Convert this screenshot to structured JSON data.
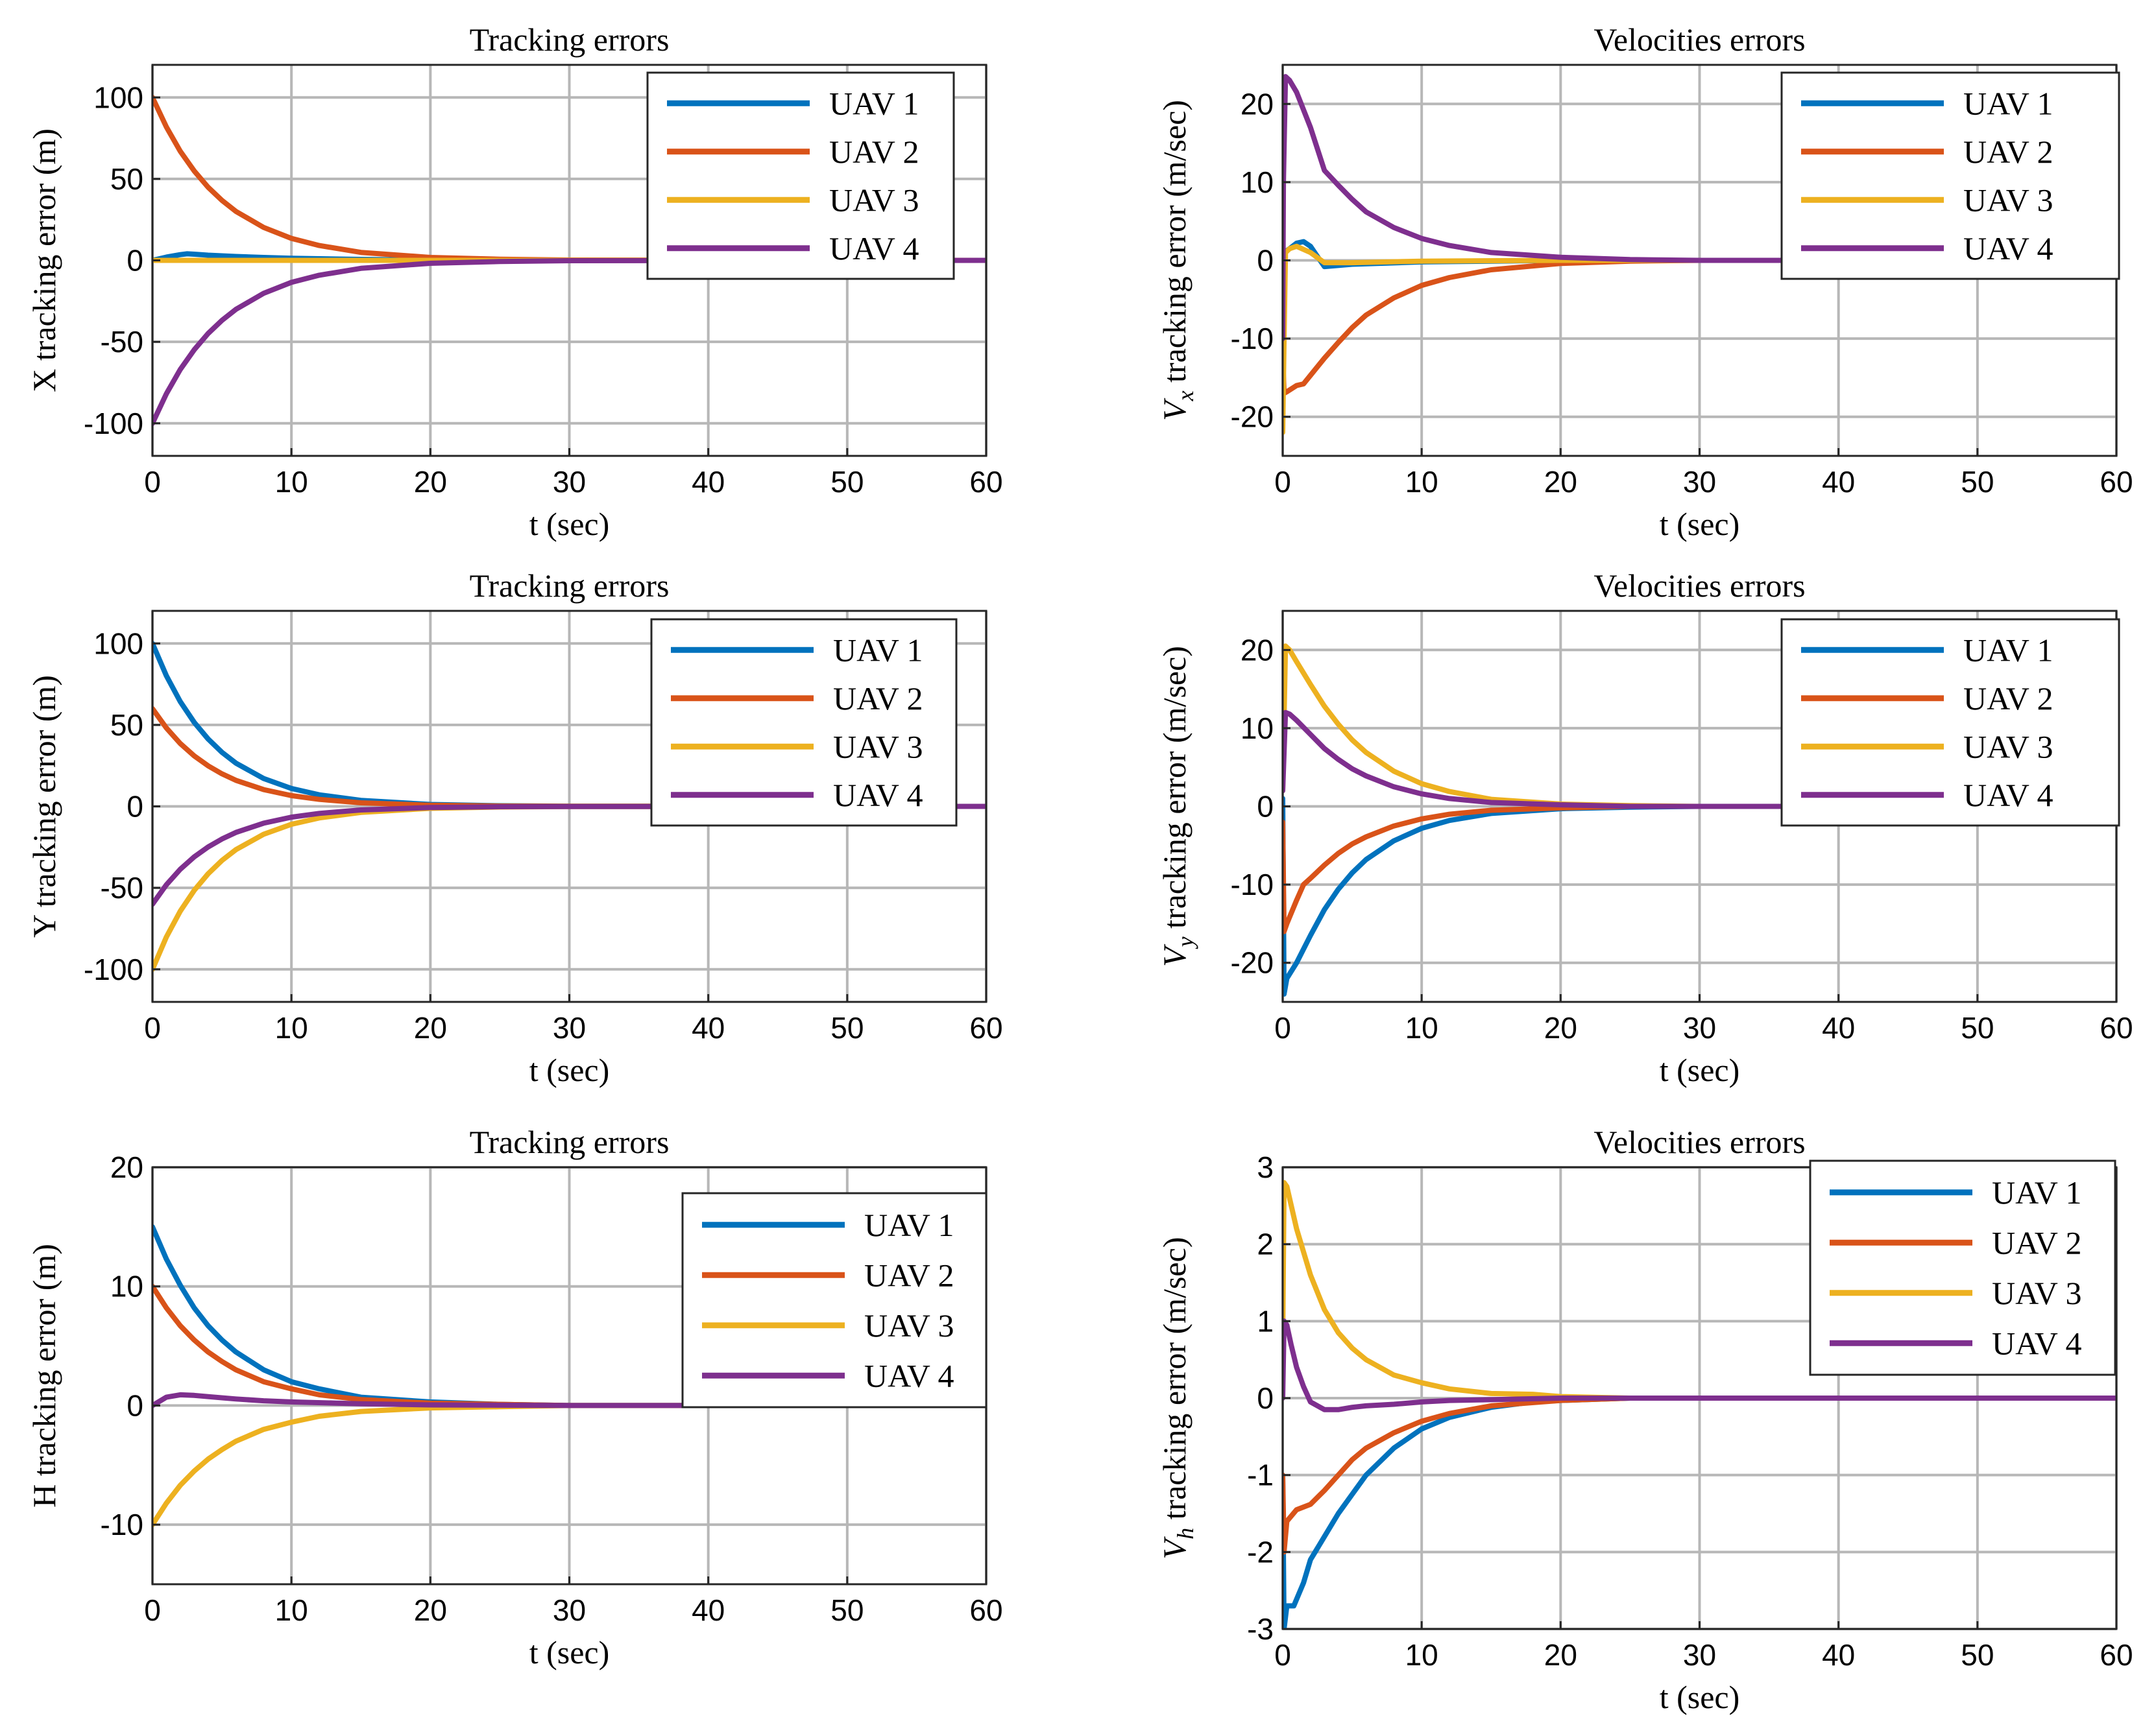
{
  "colors": {
    "uav1": "#0072BD",
    "uav2": "#D95319",
    "uav3": "#EDB120",
    "uav4": "#7E2F8E"
  },
  "chart_data": [
    {
      "type": "line",
      "panel": "x-tracking",
      "title": "Tracking errors",
      "xlabel": "t (sec)",
      "ylabel": "X tracking error (m)",
      "xlim": [
        0,
        60
      ],
      "ylim": [
        -120,
        120
      ],
      "xticks": [
        0,
        10,
        20,
        30,
        40,
        50,
        60
      ],
      "yticks": [
        -100,
        -50,
        0,
        50,
        100
      ],
      "xtick_labels": [
        "0",
        "10",
        "20",
        "30",
        "40",
        "50",
        "60"
      ],
      "ytick_labels": [
        "-100",
        "-50",
        "0",
        "50",
        "100"
      ],
      "legend": "top-right",
      "series": [
        {
          "name": "UAV 1",
          "color": "#0072BD",
          "x": [
            0,
            1,
            2,
            2.5,
            3,
            4,
            6,
            8,
            10,
            15,
            20,
            30,
            60
          ],
          "y": [
            0,
            2,
            3.5,
            4,
            3.8,
            3.2,
            2.4,
            1.8,
            1.3,
            0.6,
            0.2,
            0,
            0
          ]
        },
        {
          "name": "UAV 2",
          "color": "#D95319",
          "x": [
            0,
            1,
            2,
            3,
            4,
            5,
            6,
            8,
            10,
            12,
            15,
            20,
            25,
            30,
            60
          ],
          "y": [
            100,
            81.9,
            67,
            54.9,
            44.9,
            36.8,
            30.1,
            20.2,
            13.5,
            9.1,
            4.9,
            1.8,
            0.7,
            0.2,
            0
          ]
        },
        {
          "name": "UAV 3",
          "color": "#EDB120",
          "x": [
            0,
            5,
            10,
            20,
            30,
            60
          ],
          "y": [
            0,
            0,
            0,
            0,
            0,
            0
          ]
        },
        {
          "name": "UAV 4",
          "color": "#7E2F8E",
          "x": [
            0,
            1,
            2,
            3,
            4,
            5,
            6,
            8,
            10,
            12,
            15,
            20,
            25,
            30,
            60
          ],
          "y": [
            -100,
            -81.9,
            -67,
            -54.9,
            -44.9,
            -36.8,
            -30.1,
            -20.2,
            -13.5,
            -9.1,
            -4.9,
            -1.8,
            -0.7,
            -0.2,
            0
          ]
        }
      ]
    },
    {
      "type": "line",
      "panel": "vx-velocity",
      "title": "Velocities errors",
      "xlabel": "t (sec)",
      "ylabel_var": "V",
      "ylabel_sub": "x",
      "ylabel_rest": " tracking error (m/sec)",
      "xlim": [
        0,
        60
      ],
      "ylim": [
        -25,
        25
      ],
      "xticks": [
        0,
        10,
        20,
        30,
        40,
        50,
        60
      ],
      "yticks": [
        -20,
        -10,
        0,
        10,
        20
      ],
      "xtick_labels": [
        "0",
        "10",
        "20",
        "30",
        "40",
        "50",
        "60"
      ],
      "ytick_labels": [
        "-20",
        "-10",
        "0",
        "10",
        "20"
      ],
      "legend": "top-right",
      "series": [
        {
          "name": "UAV 1",
          "color": "#0072BD",
          "x": [
            0,
            0.1,
            0.5,
            1,
            1.5,
            2,
            2.5,
            3,
            5,
            10,
            15,
            20,
            60
          ],
          "y": [
            0,
            1,
            1.5,
            2.2,
            2.4,
            1.8,
            0.5,
            -0.8,
            -0.5,
            -0.2,
            -0.1,
            0,
            0
          ]
        },
        {
          "name": "UAV 2",
          "color": "#D95319",
          "x": [
            0,
            0.1,
            0.3,
            1,
            1.5,
            2,
            3,
            4,
            5,
            6,
            8,
            10,
            12,
            15,
            20,
            25,
            30,
            60
          ],
          "y": [
            -12,
            -17,
            -16.8,
            -16,
            -15.8,
            -14.7,
            -12.5,
            -10.5,
            -8.6,
            -7,
            -4.8,
            -3.2,
            -2.2,
            -1.2,
            -0.4,
            -0.1,
            0,
            0
          ]
        },
        {
          "name": "UAV 3",
          "color": "#EDB120",
          "x": [
            0,
            0.1,
            0.2,
            0.5,
            1,
            2,
            3,
            5,
            10,
            20,
            60
          ],
          "y": [
            -22,
            -10,
            1,
            1.5,
            1.8,
            1,
            -0.3,
            -0.3,
            -0.1,
            0,
            0
          ]
        },
        {
          "name": "UAV 4",
          "color": "#7E2F8E",
          "x": [
            0,
            0.05,
            0.2,
            0.5,
            1,
            2,
            3,
            4,
            5,
            6,
            8,
            10,
            12,
            15,
            20,
            25,
            30,
            60
          ],
          "y": [
            -10,
            10,
            23.5,
            23,
            21.5,
            17,
            11.5,
            9.6,
            7.8,
            6.2,
            4.2,
            2.8,
            1.9,
            1,
            0.4,
            0.1,
            0,
            0
          ]
        }
      ]
    },
    {
      "type": "line",
      "panel": "y-tracking",
      "title": "Tracking errors",
      "xlabel": "t (sec)",
      "ylabel": "Y tracking error (m)",
      "xlim": [
        0,
        60
      ],
      "ylim": [
        -120,
        120
      ],
      "xticks": [
        0,
        10,
        20,
        30,
        40,
        50,
        60
      ],
      "yticks": [
        -100,
        -50,
        0,
        50,
        100
      ],
      "xtick_labels": [
        "0",
        "10",
        "20",
        "30",
        "40",
        "50",
        "60"
      ],
      "ytick_labels": [
        "-100",
        "-50",
        "0",
        "50",
        "100"
      ],
      "legend": "top-right",
      "series": [
        {
          "name": "UAV 1",
          "color": "#0072BD",
          "x": [
            0,
            1,
            2,
            3,
            4,
            5,
            6,
            8,
            10,
            12,
            15,
            20,
            25,
            30,
            60
          ],
          "y": [
            100,
            80.2,
            64.3,
            51.6,
            41.4,
            33.2,
            26.6,
            17.1,
            11,
            7.1,
            3.7,
            1.2,
            0.4,
            0.1,
            0
          ]
        },
        {
          "name": "UAV 2",
          "color": "#D95319",
          "x": [
            0,
            1,
            2,
            3,
            4,
            5,
            6,
            8,
            10,
            12,
            15,
            20,
            25,
            30,
            60
          ],
          "y": [
            60,
            48.1,
            38.6,
            31,
            24.9,
            20,
            16,
            10.3,
            6.6,
            4.3,
            2.2,
            0.7,
            0.2,
            0.1,
            0
          ]
        },
        {
          "name": "UAV 3",
          "color": "#EDB120",
          "x": [
            0,
            1,
            2,
            3,
            4,
            5,
            6,
            8,
            10,
            12,
            15,
            20,
            25,
            30,
            60
          ],
          "y": [
            -100,
            -80.2,
            -64.3,
            -51.6,
            -41.4,
            -33.2,
            -26.6,
            -17.1,
            -11,
            -7.1,
            -3.7,
            -1.2,
            -0.4,
            -0.1,
            0
          ]
        },
        {
          "name": "UAV 4",
          "color": "#7E2F8E",
          "x": [
            0,
            1,
            2,
            3,
            4,
            5,
            6,
            8,
            10,
            12,
            15,
            20,
            25,
            30,
            60
          ],
          "y": [
            -60,
            -48.1,
            -38.6,
            -31,
            -24.9,
            -20,
            -16,
            -10.3,
            -6.6,
            -4.3,
            -2.2,
            -0.7,
            -0.2,
            -0.1,
            0
          ]
        }
      ]
    },
    {
      "type": "line",
      "panel": "vy-velocity",
      "title": "Velocities errors",
      "xlabel": "t (sec)",
      "ylabel_var": "V",
      "ylabel_sub": "y",
      "ylabel_rest": " tracking error (m/sec)",
      "xlim": [
        0,
        60
      ],
      "ylim": [
        -25,
        25
      ],
      "xticks": [
        0,
        10,
        20,
        30,
        40,
        50,
        60
      ],
      "yticks": [
        -20,
        -10,
        0,
        10,
        20
      ],
      "xtick_labels": [
        "0",
        "10",
        "20",
        "30",
        "40",
        "50",
        "60"
      ],
      "ytick_labels": [
        "-20",
        "-10",
        "0",
        "10",
        "20"
      ],
      "legend": "top-right",
      "series": [
        {
          "name": "UAV 1",
          "color": "#0072BD",
          "x": [
            0,
            0.1,
            0.3,
            1,
            2,
            3,
            4,
            5,
            6,
            8,
            10,
            12,
            15,
            20,
            25,
            30,
            60
          ],
          "y": [
            1,
            -24,
            -22,
            -20,
            -16.5,
            -13.2,
            -10.6,
            -8.5,
            -6.8,
            -4.4,
            -2.8,
            -1.8,
            -0.9,
            -0.3,
            -0.1,
            0,
            0
          ]
        },
        {
          "name": "UAV 2",
          "color": "#D95319",
          "x": [
            0,
            0.1,
            0.3,
            1,
            1.5,
            2,
            3,
            4,
            5,
            6,
            8,
            10,
            12,
            15,
            20,
            25,
            60
          ],
          "y": [
            -2,
            -16,
            -15,
            -12,
            -10,
            -9.2,
            -7.5,
            -6,
            -4.8,
            -3.9,
            -2.5,
            -1.6,
            -1,
            -0.5,
            -0.2,
            0,
            0
          ]
        },
        {
          "name": "UAV 3",
          "color": "#EDB120",
          "x": [
            0,
            0.2,
            0.5,
            1,
            2,
            3,
            4,
            5,
            6,
            8,
            10,
            12,
            15,
            20,
            25,
            30,
            60
          ],
          "y": [
            2,
            20.5,
            20,
            18.5,
            15.6,
            12.8,
            10.5,
            8.5,
            6.9,
            4.5,
            2.9,
            1.9,
            0.9,
            0.3,
            0.1,
            0,
            0
          ]
        },
        {
          "name": "UAV 4",
          "color": "#7E2F8E",
          "x": [
            0,
            0.2,
            0.5,
            1,
            2,
            3,
            4,
            5,
            6,
            8,
            10,
            12,
            15,
            20,
            25,
            60
          ],
          "y": [
            2,
            12,
            11.8,
            11,
            9.2,
            7.4,
            6,
            4.8,
            3.9,
            2.5,
            1.6,
            1,
            0.5,
            0.2,
            0,
            0
          ]
        }
      ]
    },
    {
      "type": "line",
      "panel": "h-tracking",
      "title": "Tracking errors",
      "xlabel": "t (sec)",
      "ylabel": "H tracking error (m)",
      "xlim": [
        0,
        60
      ],
      "ylim": [
        -15,
        20
      ],
      "xticks": [
        0,
        10,
        20,
        30,
        40,
        50,
        60
      ],
      "yticks": [
        -10,
        0,
        10,
        20
      ],
      "xtick_labels": [
        "0",
        "10",
        "20",
        "30",
        "40",
        "50",
        "60"
      ],
      "ytick_labels": [
        "-10",
        "0",
        "10",
        "20"
      ],
      "legend": "top-right",
      "series": [
        {
          "name": "UAV 1",
          "color": "#0072BD",
          "x": [
            0,
            1,
            2,
            3,
            4,
            5,
            6,
            8,
            10,
            12,
            15,
            20,
            25,
            30,
            60
          ],
          "y": [
            15,
            12.3,
            10.1,
            8.2,
            6.7,
            5.5,
            4.5,
            3,
            2,
            1.4,
            0.7,
            0.3,
            0.1,
            0,
            0
          ]
        },
        {
          "name": "UAV 2",
          "color": "#D95319",
          "x": [
            0,
            1,
            2,
            3,
            4,
            5,
            6,
            8,
            10,
            12,
            15,
            20,
            25,
            30,
            60
          ],
          "y": [
            10,
            8.2,
            6.7,
            5.5,
            4.5,
            3.7,
            3,
            2,
            1.4,
            0.9,
            0.5,
            0.2,
            0.1,
            0,
            0
          ]
        },
        {
          "name": "UAV 3",
          "color": "#EDB120",
          "x": [
            0,
            1,
            2,
            3,
            4,
            5,
            6,
            8,
            10,
            12,
            15,
            20,
            25,
            30,
            60
          ],
          "y": [
            -10,
            -8.2,
            -6.7,
            -5.5,
            -4.5,
            -3.7,
            -3,
            -2,
            -1.4,
            -0.9,
            -0.5,
            -0.2,
            -0.1,
            0,
            0
          ]
        },
        {
          "name": "UAV 4",
          "color": "#7E2F8E",
          "x": [
            0,
            1,
            2,
            3,
            4,
            6,
            8,
            10,
            15,
            20,
            30,
            60
          ],
          "y": [
            0,
            0.7,
            0.9,
            0.85,
            0.75,
            0.55,
            0.4,
            0.3,
            0.15,
            0.05,
            0,
            0
          ]
        }
      ]
    },
    {
      "type": "line",
      "panel": "vh-velocity",
      "title": "Velocities errors",
      "xlabel": "t (sec)",
      "ylabel_var": "V",
      "ylabel_sub": "h",
      "ylabel_rest": " tracking error (m/sec)",
      "xlim": [
        0,
        60
      ],
      "ylim": [
        -3,
        3
      ],
      "xticks": [
        0,
        10,
        20,
        30,
        40,
        50,
        60
      ],
      "yticks": [
        -3,
        -2,
        -1,
        0,
        1,
        2,
        3
      ],
      "xtick_labels": [
        "0",
        "10",
        "20",
        "30",
        "40",
        "50",
        "60"
      ],
      "ytick_labels": [
        "-3",
        "-2",
        "-1",
        "0",
        "1",
        "2",
        "3"
      ],
      "legend": "top-right",
      "series": [
        {
          "name": "UAV 1",
          "color": "#0072BD",
          "x": [
            0,
            0.1,
            0.3,
            0.8,
            1.5,
            2,
            3,
            4,
            5,
            6,
            8,
            10,
            12,
            15,
            18,
            20,
            25,
            60
          ],
          "y": [
            -1,
            -3,
            -2.7,
            -2.7,
            -2.4,
            -2.1,
            -1.8,
            -1.5,
            -1.25,
            -1,
            -0.65,
            -0.4,
            -0.25,
            -0.12,
            -0.05,
            -0.03,
            0,
            0
          ]
        },
        {
          "name": "UAV 2",
          "color": "#D95319",
          "x": [
            0,
            0.1,
            0.3,
            1,
            2,
            3,
            4,
            5,
            6,
            8,
            10,
            12,
            15,
            20,
            25,
            60
          ],
          "y": [
            -1,
            -2,
            -1.6,
            -1.45,
            -1.38,
            -1.2,
            -1,
            -0.8,
            -0.65,
            -0.45,
            -0.3,
            -0.2,
            -0.1,
            -0.03,
            0,
            0
          ]
        },
        {
          "name": "UAV 3",
          "color": "#EDB120",
          "x": [
            0,
            0.1,
            0.3,
            1,
            2,
            3,
            4,
            5,
            6,
            8,
            10,
            12,
            15,
            18,
            20,
            25,
            60
          ],
          "y": [
            0.7,
            2.8,
            2.75,
            2.2,
            1.6,
            1.15,
            0.85,
            0.65,
            0.5,
            0.3,
            0.2,
            0.12,
            0.06,
            0.05,
            0.02,
            0,
            0
          ]
        },
        {
          "name": "UAV 4",
          "color": "#7E2F8E",
          "x": [
            0,
            0.1,
            0.3,
            0.6,
            1,
            1.5,
            2,
            3,
            4,
            5,
            6,
            8,
            10,
            12,
            15,
            20,
            25,
            60
          ],
          "y": [
            0,
            1,
            0.95,
            0.7,
            0.4,
            0.15,
            -0.05,
            -0.15,
            -0.15,
            -0.12,
            -0.1,
            -0.08,
            -0.05,
            -0.03,
            -0.02,
            0,
            0,
            0
          ]
        }
      ]
    }
  ]
}
